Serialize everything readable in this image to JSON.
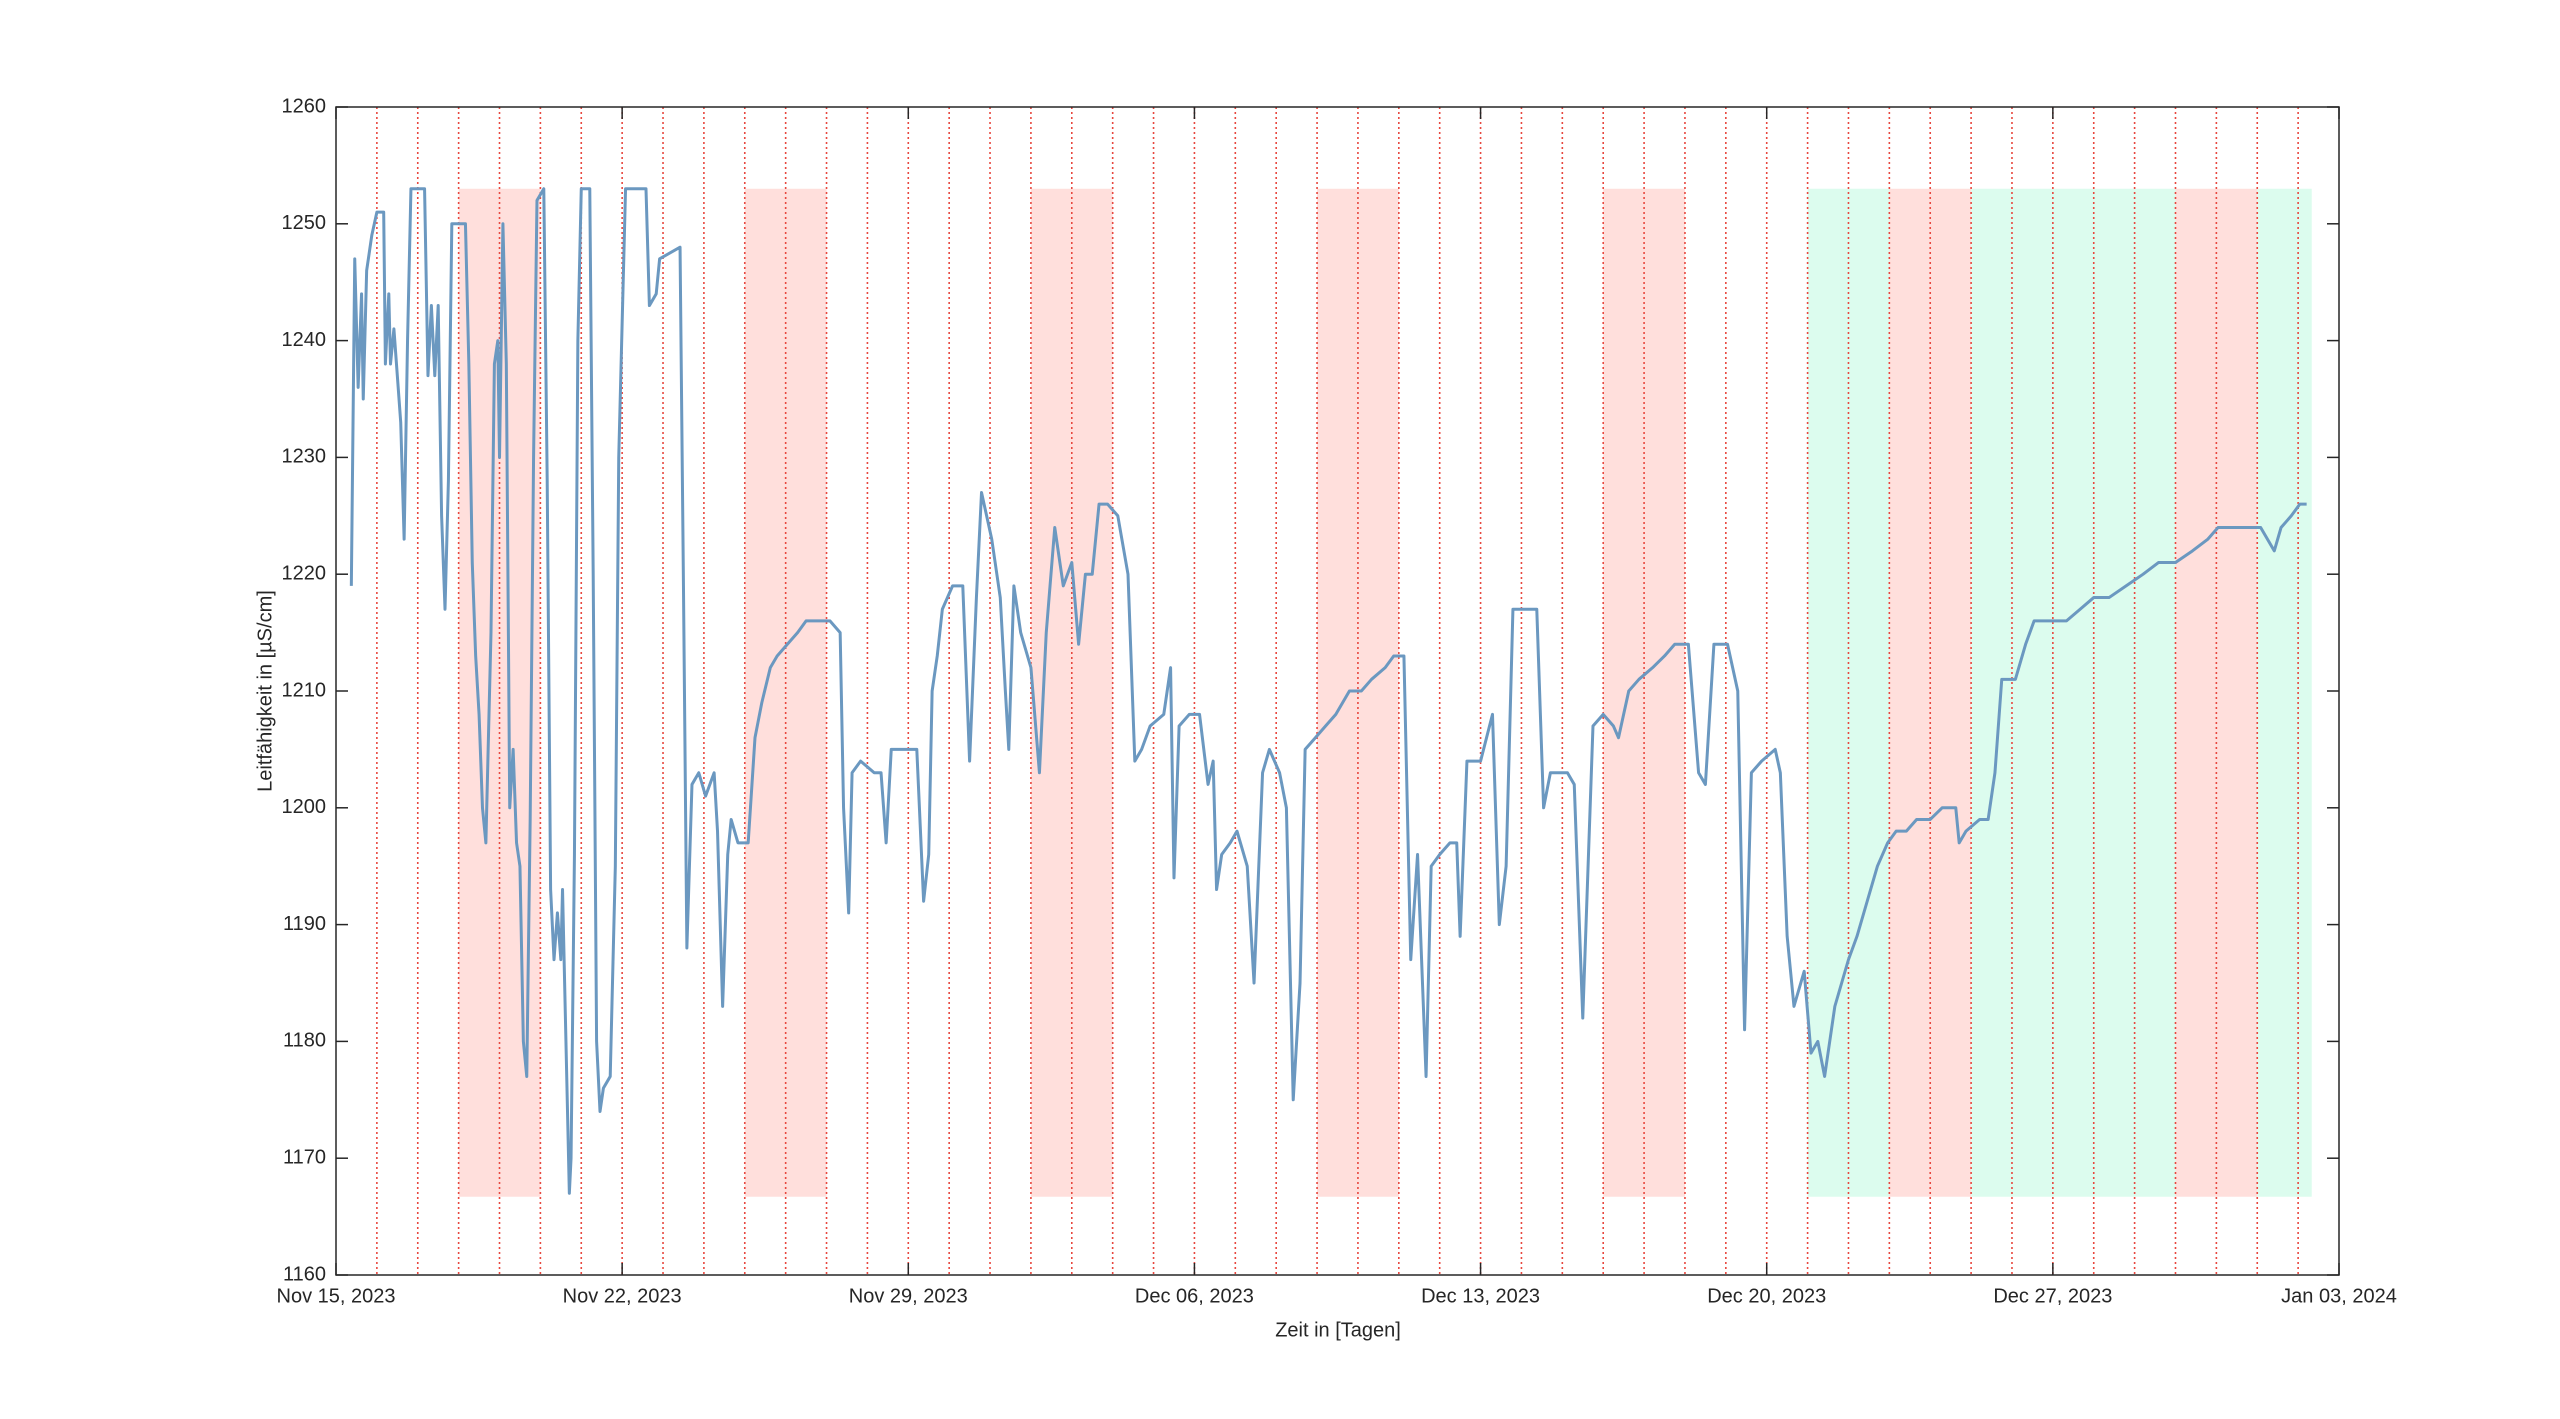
{
  "chart_data": {
    "type": "line",
    "x_label": "Zeit in [Tagen]",
    "y_label": "Leitfähigkeit in [µS/cm]",
    "xlim": [
      "2023-11-15",
      "2024-01-03"
    ],
    "xticks": [
      {
        "value": "2023-11-15",
        "label": "Nov 15, 2023"
      },
      {
        "value": "2023-11-22",
        "label": "Nov 22, 2023"
      },
      {
        "value": "2023-11-29",
        "label": "Nov 29, 2023"
      },
      {
        "value": "2023-12-06",
        "label": "Dec 06, 2023"
      },
      {
        "value": "2023-12-13",
        "label": "Dec 13, 2023"
      },
      {
        "value": "2023-12-20",
        "label": "Dec 20, 2023"
      },
      {
        "value": "2023-12-27",
        "label": "Dec 27, 2023"
      },
      {
        "value": "2024-01-03",
        "label": "Jan 03, 2024"
      }
    ],
    "ylim": [
      1160,
      1260
    ],
    "yticks": [
      1160,
      1170,
      1180,
      1190,
      1200,
      1210,
      1220,
      1230,
      1240,
      1250,
      1260
    ],
    "day_lines": true,
    "day_line_color": "#e8483f",
    "region_ylim": [
      1166.7,
      1253
    ],
    "regions": [
      {
        "start": "2023-11-18",
        "end": "2023-11-20",
        "color": "#ffdfdc"
      },
      {
        "start": "2023-11-25",
        "end": "2023-11-27",
        "color": "#ffdfdc"
      },
      {
        "start": "2023-12-02",
        "end": "2023-12-04",
        "color": "#ffdfdc"
      },
      {
        "start": "2023-12-09",
        "end": "2023-12-11",
        "color": "#ffdfdc"
      },
      {
        "start": "2023-12-16",
        "end": "2023-12-18",
        "color": "#ffdfdc"
      },
      {
        "start": "2023-12-21",
        "end": "2023-12-23",
        "color": "#dcfcee"
      },
      {
        "start": "2023-12-23",
        "end": "2023-12-25",
        "color": "#ffdfdc"
      },
      {
        "start": "2023-12-25",
        "end": "2023-12-30",
        "color": "#dcfcee"
      },
      {
        "start": "2023-12-30",
        "end": "2024-01-01",
        "color": "#ffdfdc"
      },
      {
        "start": "2024-01-01",
        "end": "2024-01-02 08:00",
        "color": "#dcfcee"
      }
    ],
    "x": [
      "2023-11-15 09:00",
      "2023-11-15 11:00",
      "2023-11-15 13:00",
      "2023-11-15 15:00",
      "2023-11-15 16:00",
      "2023-11-15 18:00",
      "2023-11-15 21:00",
      "2023-11-16 00:00",
      "2023-11-16 04:00",
      "2023-11-16 05:00",
      "2023-11-16 07:00",
      "2023-11-16 08:00",
      "2023-11-16 10:00",
      "2023-11-16 12:00",
      "2023-11-16 14:00",
      "2023-11-16 16:00",
      "2023-11-16 18:00",
      "2023-11-16 20:00",
      "2023-11-17 04:00",
      "2023-11-17 06:00",
      "2023-11-17 08:00",
      "2023-11-17 10:00",
      "2023-11-17 12:00",
      "2023-11-17 14:00",
      "2023-11-17 16:00",
      "2023-11-17 18:00",
      "2023-11-17 20:00",
      "2023-11-18 04:00",
      "2023-11-18 06:00",
      "2023-11-18 08:00",
      "2023-11-18 10:00",
      "2023-11-18 12:00",
      "2023-11-18 14:00",
      "2023-11-18 16:00",
      "2023-11-18 19:00",
      "2023-11-18 21:00",
      "2023-11-18 23:00",
      "2023-11-19 00:00",
      "2023-11-19 02:00",
      "2023-11-19 04:00",
      "2023-11-19 06:00",
      "2023-11-19 08:00",
      "2023-11-19 10:00",
      "2023-11-19 12:00",
      "2023-11-19 14:00",
      "2023-11-19 16:00",
      "2023-11-19 18:00",
      "2023-11-19 20:00",
      "2023-11-19 22:00",
      "2023-11-20 02:00",
      "2023-11-20 04:00",
      "2023-11-20 06:00",
      "2023-11-20 08:00",
      "2023-11-20 10:00",
      "2023-11-20 12:00",
      "2023-11-20 13:00",
      "2023-11-20 15:00",
      "2023-11-20 17:00",
      "2023-11-20 18:00",
      "2023-11-20 20:00",
      "2023-11-20 22:00",
      "2023-11-21 00:00",
      "2023-11-21 05:00",
      "2023-11-21 07:00",
      "2023-11-21 09:00",
      "2023-11-21 11:00",
      "2023-11-21 13:00",
      "2023-11-21 17:00",
      "2023-11-21 20:00",
      "2023-11-21 22:00",
      "2023-11-22 02:00",
      "2023-11-22 14:00",
      "2023-11-22 16:00",
      "2023-11-22 20:00",
      "2023-11-22 22:00",
      "2023-11-23 10:00",
      "2023-11-23 12:00",
      "2023-11-23 14:00",
      "2023-11-23 17:00",
      "2023-11-23 21:00",
      "2023-11-24 01:00",
      "2023-11-24 06:00",
      "2023-11-24 08:00",
      "2023-11-24 11:00",
      "2023-11-24 14:00",
      "2023-11-24 16:00",
      "2023-11-24 20:00",
      "2023-11-25 02:00",
      "2023-11-25 06:00",
      "2023-11-25 10:00",
      "2023-11-25 15:00",
      "2023-11-25 19:00",
      "2023-11-26 01:00",
      "2023-11-26 07:00",
      "2023-11-26 12:00",
      "2023-11-26 18:00",
      "2023-11-27 02:00",
      "2023-11-27 08:00",
      "2023-11-27 10:00",
      "2023-11-27 13:00",
      "2023-11-27 15:00",
      "2023-11-27 20:00",
      "2023-11-28 04:00",
      "2023-11-28 08:00",
      "2023-11-28 11:00",
      "2023-11-28 14:00",
      "2023-11-28 19:00",
      "2023-11-29 05:00",
      "2023-11-29 09:00",
      "2023-11-29 12:00",
      "2023-11-29 14:00",
      "2023-11-29 17:00",
      "2023-11-29 20:00",
      "2023-11-30 02:00",
      "2023-11-30 08:00",
      "2023-11-30 12:00",
      "2023-11-30 16:00",
      "2023-11-30 19:00",
      "2023-12-01 01:00",
      "2023-12-01 06:00",
      "2023-12-01 09:00",
      "2023-12-01 11:00",
      "2023-12-01 14:00",
      "2023-12-01 18:00",
      "2023-12-02 00:00",
      "2023-12-02 05:00",
      "2023-12-02 09:00",
      "2023-12-02 14:00",
      "2023-12-02 19:00",
      "2023-12-03 00:00",
      "2023-12-03 04:00",
      "2023-12-03 08:00",
      "2023-12-03 12:00",
      "2023-12-03 16:00",
      "2023-12-03 21:00",
      "2023-12-04 03:00",
      "2023-12-04 09:00",
      "2023-12-04 13:00",
      "2023-12-04 17:00",
      "2023-12-04 22:00",
      "2023-12-05 06:00",
      "2023-12-05 10:00",
      "2023-12-05 12:00",
      "2023-12-05 15:00",
      "2023-12-05 21:00",
      "2023-12-06 03:00",
      "2023-12-06 08:00",
      "2023-12-06 11:00",
      "2023-12-06 13:00",
      "2023-12-06 16:00",
      "2023-12-06 21:00",
      "2023-12-07 01:00",
      "2023-12-07 07:00",
      "2023-12-07 11:00",
      "2023-12-07 16:00",
      "2023-12-07 20:00",
      "2023-12-08 02:00",
      "2023-12-08 06:00",
      "2023-12-08 10:00",
      "2023-12-08 14:00",
      "2023-12-08 17:00",
      "2023-12-08 23:00",
      "2023-12-09 05:00",
      "2023-12-09 11:00",
      "2023-12-09 19:00",
      "2023-12-10 02:00",
      "2023-12-10 08:00",
      "2023-12-10 16:00",
      "2023-12-10 21:00",
      "2023-12-11 03:00",
      "2023-12-11 07:00",
      "2023-12-11 11:00",
      "2023-12-11 16:00",
      "2023-12-11 19:00",
      "2023-12-12 00:00",
      "2023-12-12 06:00",
      "2023-12-12 10:00",
      "2023-12-12 12:00",
      "2023-12-12 16:00",
      "2023-12-13 00:00",
      "2023-12-13 07:00",
      "2023-12-13 11:00",
      "2023-12-13 15:00",
      "2023-12-13 19:00",
      "2023-12-14 03:00",
      "2023-12-14 09:00",
      "2023-12-14 13:00",
      "2023-12-14 17:00",
      "2023-12-15 03:00",
      "2023-12-15 07:00",
      "2023-12-15 12:00",
      "2023-12-15 18:00",
      "2023-12-16 00:00",
      "2023-12-16 06:00",
      "2023-12-16 09:00",
      "2023-12-16 15:00",
      "2023-12-16 21:00",
      "2023-12-17 05:00",
      "2023-12-17 12:00",
      "2023-12-17 18:00",
      "2023-12-18 02:00",
      "2023-12-18 08:00",
      "2023-12-18 12:00",
      "2023-12-18 17:00",
      "2023-12-19 01:00",
      "2023-12-19 07:00",
      "2023-12-19 11:00",
      "2023-12-19 15:00",
      "2023-12-19 21:00",
      "2023-12-20 05:00",
      "2023-12-20 08:00",
      "2023-12-20 12:00",
      "2023-12-20 16:00",
      "2023-12-20 22:00",
      "2023-12-21 02:00",
      "2023-12-21 06:00",
      "2023-12-21 10:00",
      "2023-12-21 16:00",
      "2023-12-22 00:00",
      "2023-12-22 05:00",
      "2023-12-22 11:00",
      "2023-12-22 17:00",
      "2023-12-22 23:00",
      "2023-12-23 04:00",
      "2023-12-23 10:00",
      "2023-12-23 16:00",
      "2023-12-24 00:00",
      "2023-12-24 07:00",
      "2023-12-24 15:00",
      "2023-12-24 17:00",
      "2023-12-24 21:00",
      "2023-12-25 05:00",
      "2023-12-25 10:00",
      "2023-12-25 14:00",
      "2023-12-25 18:00",
      "2023-12-26 02:00",
      "2023-12-26 08:00",
      "2023-12-26 13:00",
      "2023-12-26 23:00",
      "2023-12-27 08:00",
      "2023-12-27 16:00",
      "2023-12-28 00:00",
      "2023-12-28 09:00",
      "2023-12-28 19:00",
      "2023-12-29 05:00",
      "2023-12-29 14:00",
      "2023-12-30 00:00",
      "2023-12-30 10:00",
      "2023-12-30 19:00",
      "2023-12-31 01:00",
      "2023-12-31 09:00",
      "2023-12-31 19:00",
      "2024-01-01 02:00",
      "2024-01-01 10:00",
      "2024-01-01 14:00",
      "2024-01-01 20:00",
      "2024-01-02 01:00",
      "2024-01-02 05:00"
    ],
    "series": [
      {
        "color": "#6b98c0",
        "values": [
          1219,
          1247,
          1236,
          1244,
          1235,
          1246,
          1249,
          1251,
          1251,
          1238,
          1244,
          1238,
          1241,
          1237,
          1233,
          1223,
          1240,
          1253,
          1253,
          1237,
          1243,
          1237,
          1243,
          1225,
          1217,
          1228,
          1250,
          1250,
          1238,
          1221,
          1213,
          1208,
          1200,
          1197,
          1215,
          1238,
          1240,
          1230,
          1250,
          1238,
          1200,
          1205,
          1197,
          1195,
          1180,
          1177,
          1199,
          1230,
          1252,
          1253,
          1228,
          1193,
          1187,
          1191,
          1187,
          1193,
          1180,
          1167,
          1170,
          1196,
          1240,
          1253,
          1253,
          1220,
          1180,
          1174,
          1176,
          1177,
          1195,
          1230,
          1253,
          1253,
          1243,
          1244,
          1247,
          1248,
          1219,
          1188,
          1202,
          1203,
          1201,
          1203,
          1198,
          1183,
          1196,
          1199,
          1197,
          1197,
          1206,
          1209,
          1212,
          1213,
          1214,
          1215,
          1216,
          1216,
          1216,
          1215,
          1200,
          1191,
          1203,
          1204,
          1203,
          1203,
          1197,
          1205,
          1205,
          1205,
          1192,
          1196,
          1210,
          1213,
          1217,
          1219,
          1219,
          1204,
          1218,
          1227,
          1223,
          1218,
          1210,
          1205,
          1219,
          1215,
          1212,
          1203,
          1215,
          1224,
          1219,
          1221,
          1214,
          1220,
          1220,
          1226,
          1226,
          1225,
          1220,
          1204,
          1205,
          1207,
          1208,
          1212,
          1194,
          1207,
          1208,
          1208,
          1202,
          1204,
          1193,
          1196,
          1197,
          1198,
          1195,
          1185,
          1203,
          1205,
          1203,
          1200,
          1175,
          1185,
          1205,
          1206,
          1207,
          1208,
          1210,
          1210,
          1211,
          1212,
          1213,
          1213,
          1187,
          1196,
          1177,
          1195,
          1196,
          1197,
          1197,
          1189,
          1204,
          1204,
          1208,
          1190,
          1195,
          1217,
          1217,
          1217,
          1200,
          1203,
          1203,
          1202,
          1182,
          1207,
          1208,
          1207,
          1206,
          1210,
          1211,
          1212,
          1213,
          1214,
          1214,
          1203,
          1202,
          1214,
          1214,
          1210,
          1181,
          1203,
          1204,
          1205,
          1203,
          1189,
          1183,
          1186,
          1179,
          1180,
          1177,
          1183,
          1187,
          1189,
          1192,
          1195,
          1197,
          1198,
          1198,
          1199,
          1199,
          1200,
          1200,
          1197,
          1198,
          1199,
          1199,
          1203,
          1211,
          1211,
          1214,
          1216,
          1216,
          1216,
          1217,
          1218,
          1218,
          1219,
          1220,
          1221,
          1221,
          1222,
          1223,
          1224,
          1224,
          1224,
          1224,
          1222,
          1224,
          1225,
          1226,
          1226
        ]
      }
    ]
  }
}
